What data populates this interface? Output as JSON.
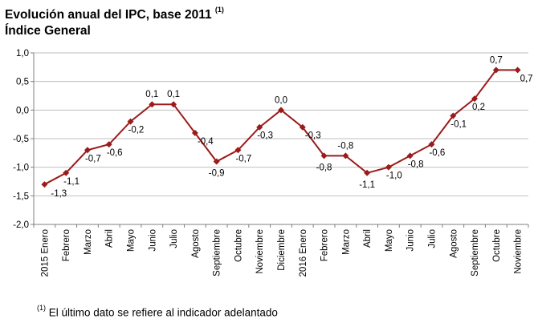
{
  "title": {
    "line1": "Evolución anual del IPC, base 2011",
    "line1_note": "(1)",
    "line2": "Índice General"
  },
  "footnote": {
    "mark": "(1)",
    "text": "El último dato se refiere al indicador adelantado"
  },
  "colors": {
    "series": "#9b1b1b",
    "axis": "#7f7f7f",
    "grid": "#bfbfbf"
  },
  "chart_data": {
    "type": "line",
    "categories": [
      "2015 Enero",
      "Febrero",
      "Marzo",
      "Abril",
      "Mayo",
      "Junio",
      "Julio",
      "Agosto",
      "Septiembre",
      "Octubre",
      "Noviembre",
      "Diciembre",
      "2016 Enero",
      "Febrero",
      "Marzo",
      "Abril",
      "Mayo",
      "Junio",
      "Julio",
      "Agosto",
      "Septiembre",
      "Octubre",
      "Noviembre"
    ],
    "values": [
      -1.3,
      -1.1,
      -0.7,
      -0.6,
      -0.2,
      0.1,
      0.1,
      -0.4,
      -0.9,
      -0.7,
      -0.3,
      0.0,
      -0.3,
      -0.8,
      -0.8,
      -1.1,
      -1.0,
      -0.8,
      -0.6,
      -0.1,
      0.2,
      0.7,
      0.7
    ],
    "data_labels": [
      "-1,3",
      "-1,1",
      "-0,7",
      "-0,6",
      "-0,2",
      "0,1",
      "0,1",
      "-0,4",
      "-0,9",
      "-0,7",
      "-0,3",
      "0,0",
      "-0,3",
      "-0,8",
      "-0,8",
      "-1,1",
      "-1,0",
      "-0,8",
      "-0,6",
      "-0,1",
      "0,2",
      "0,7",
      "0,7"
    ],
    "yticks": [
      1.0,
      0.5,
      0.0,
      -0.5,
      -1.0,
      -1.5,
      -2.0
    ],
    "ytick_labels": [
      "1,0",
      "0,5",
      "0,0",
      "-0,5",
      "-1,0",
      "-1,5",
      "-2,0"
    ],
    "ylim": [
      -2.0,
      1.0
    ],
    "grid": true,
    "marker": "diamond"
  }
}
